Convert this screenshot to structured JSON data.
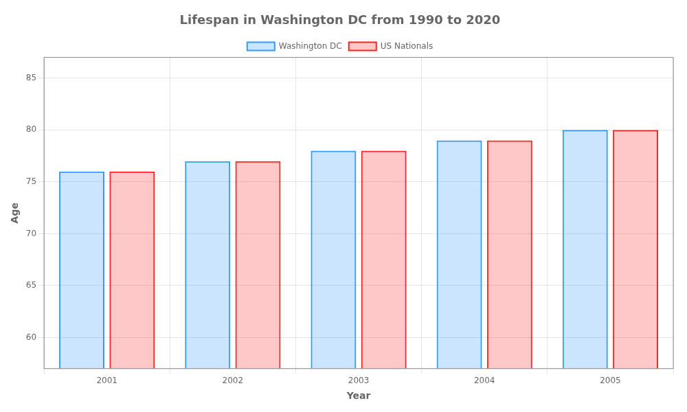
{
  "chart_data": {
    "type": "bar",
    "title": "Lifespan in Washington DC from 1990 to 2020",
    "xlabel": "Year",
    "ylabel": "Age",
    "categories": [
      "2001",
      "2002",
      "2003",
      "2004",
      "2005"
    ],
    "series": [
      {
        "name": "Washington DC",
        "color": "#3399ff",
        "values": [
          76,
          77,
          78,
          79,
          80
        ]
      },
      {
        "name": "US Nationals",
        "color": "#ff2222",
        "values": [
          76,
          77,
          78,
          79,
          80
        ]
      }
    ],
    "ylim": [
      57,
      87
    ],
    "yticks": [
      60,
      65,
      70,
      75,
      80,
      85
    ],
    "grid": true,
    "legend": "top"
  }
}
